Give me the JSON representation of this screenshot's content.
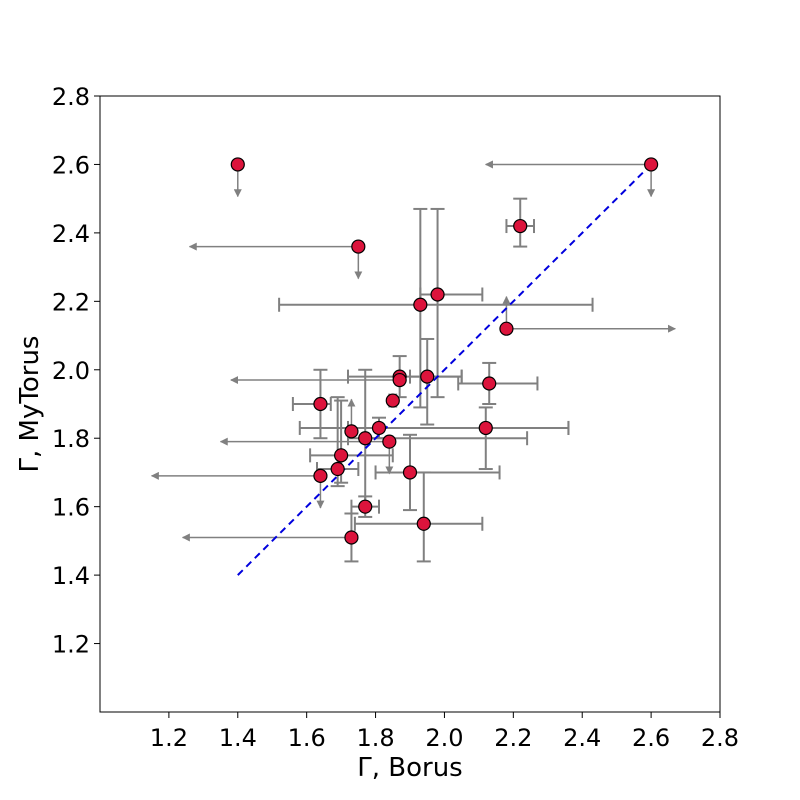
{
  "chart_data": {
    "type": "scatter",
    "xlabel": "Γ, Borus",
    "ylabel": "Γ, MyTorus",
    "xlim": [
      1.0,
      2.8
    ],
    "ylim": [
      1.0,
      2.8
    ],
    "xticks": [
      1.2,
      1.4,
      1.6,
      1.8,
      2.0,
      2.2,
      2.4,
      2.6,
      2.8
    ],
    "yticks": [
      1.2,
      1.4,
      1.6,
      1.8,
      2.0,
      2.2,
      2.4,
      2.6,
      2.8
    ],
    "xtick_labels": [
      "1.2",
      "1.4",
      "1.6",
      "1.8",
      "2.0",
      "2.2",
      "2.4",
      "2.6",
      "2.8"
    ],
    "ytick_labels": [
      "1.2",
      "1.4",
      "1.6",
      "1.8",
      "2.0",
      "2.2",
      "2.4",
      "2.6",
      "2.8"
    ],
    "grid": false,
    "reference_line": {
      "x": [
        1.4,
        2.6
      ],
      "y": [
        1.4,
        2.6
      ],
      "style": "dashed",
      "color": "#0000dd"
    },
    "colors": {
      "marker_fill": "#dc143c",
      "marker_edge": "#000000",
      "error": "#808080",
      "reference": "#0000dd"
    },
    "points": [
      {
        "x": 1.4,
        "y": 2.6,
        "y_upper_limit": true
      },
      {
        "x": 2.6,
        "y": 2.6,
        "x_upper_limit": true,
        "x_arrow_to": 2.12,
        "y_upper_limit": true
      },
      {
        "x": 1.75,
        "y": 2.36,
        "x_upper_limit": true,
        "x_arrow_to": 1.26,
        "y_upper_limit": true
      },
      {
        "x": 2.22,
        "y": 2.42,
        "xerr": [
          0.04,
          0.04
        ],
        "yerr": [
          0.06,
          0.08
        ]
      },
      {
        "x": 1.93,
        "y": 2.19,
        "xerr": [
          0.41,
          0.5
        ],
        "yerr": [
          0.3,
          0.28
        ]
      },
      {
        "x": 1.98,
        "y": 2.22,
        "xerr": [
          0.05,
          0.13
        ],
        "yerr": [
          0.3,
          0.25
        ]
      },
      {
        "x": 2.18,
        "y": 2.12,
        "x_lower_limit": true,
        "x_arrow_to": 2.67,
        "y_lower_limit": true
      },
      {
        "x": 1.87,
        "y": 1.98,
        "xerr": [
          0.15,
          0.18
        ],
        "yerr": [
          0.06,
          0.06
        ]
      },
      {
        "x": 1.87,
        "y": 1.97,
        "x_upper_limit": true,
        "x_arrow_to": 1.38
      },
      {
        "x": 1.95,
        "y": 1.98,
        "xerr": [
          0.05,
          0.1
        ],
        "yerr": [
          0.14,
          0.11
        ]
      },
      {
        "x": 2.13,
        "y": 1.96,
        "xerr": [
          0.09,
          0.14
        ],
        "yerr": [
          0.06,
          0.06
        ]
      },
      {
        "x": 1.85,
        "y": 1.91,
        "xerr": [
          0.01,
          0.01
        ]
      },
      {
        "x": 1.64,
        "y": 1.9,
        "xerr": [
          0.08,
          0.03
        ],
        "yerr": [
          0.1,
          0.1
        ]
      },
      {
        "x": 1.73,
        "y": 1.82,
        "y_lower_limit": true
      },
      {
        "x": 1.81,
        "y": 1.83,
        "xerr": [
          0.09,
          0.55
        ],
        "yerr": [
          0.03,
          0.03
        ]
      },
      {
        "x": 1.77,
        "y": 1.8,
        "xerr": [
          0.05,
          0.47
        ],
        "yerr": [
          0.2,
          0.2
        ]
      },
      {
        "x": 2.12,
        "y": 1.83,
        "xerr": [
          0.54,
          0.24
        ],
        "yerr": [
          0.12,
          0.06
        ]
      },
      {
        "x": 1.84,
        "y": 1.79,
        "x_upper_limit": true,
        "x_arrow_to": 1.35,
        "y_upper_limit": true
      },
      {
        "x": 1.7,
        "y": 1.75,
        "xerr": [
          0.09,
          0.15
        ],
        "yerr": [
          0.08,
          0.16
        ]
      },
      {
        "x": 1.69,
        "y": 1.71,
        "xerr": [
          0.06,
          0.06
        ],
        "yerr": [
          0.05,
          0.21
        ]
      },
      {
        "x": 1.9,
        "y": 1.7,
        "xerr": [
          0.1,
          0.26
        ],
        "yerr": [
          0.11,
          0.11
        ]
      },
      {
        "x": 1.64,
        "y": 1.69,
        "x_upper_limit": true,
        "x_arrow_to": 1.15,
        "y_upper_limit": true
      },
      {
        "x": 1.77,
        "y": 1.6,
        "xerr": [
          0.04,
          0.04
        ],
        "yerr": [
          0.03,
          0.03
        ]
      },
      {
        "x": 1.94,
        "y": 1.55,
        "xerr": [
          0.2,
          0.17
        ],
        "yerr": [
          0.11,
          0.15
        ]
      },
      {
        "x": 1.73,
        "y": 1.51,
        "x_upper_limit": true,
        "x_arrow_to": 1.24,
        "yerr": [
          0.07,
          0.07
        ]
      }
    ]
  }
}
